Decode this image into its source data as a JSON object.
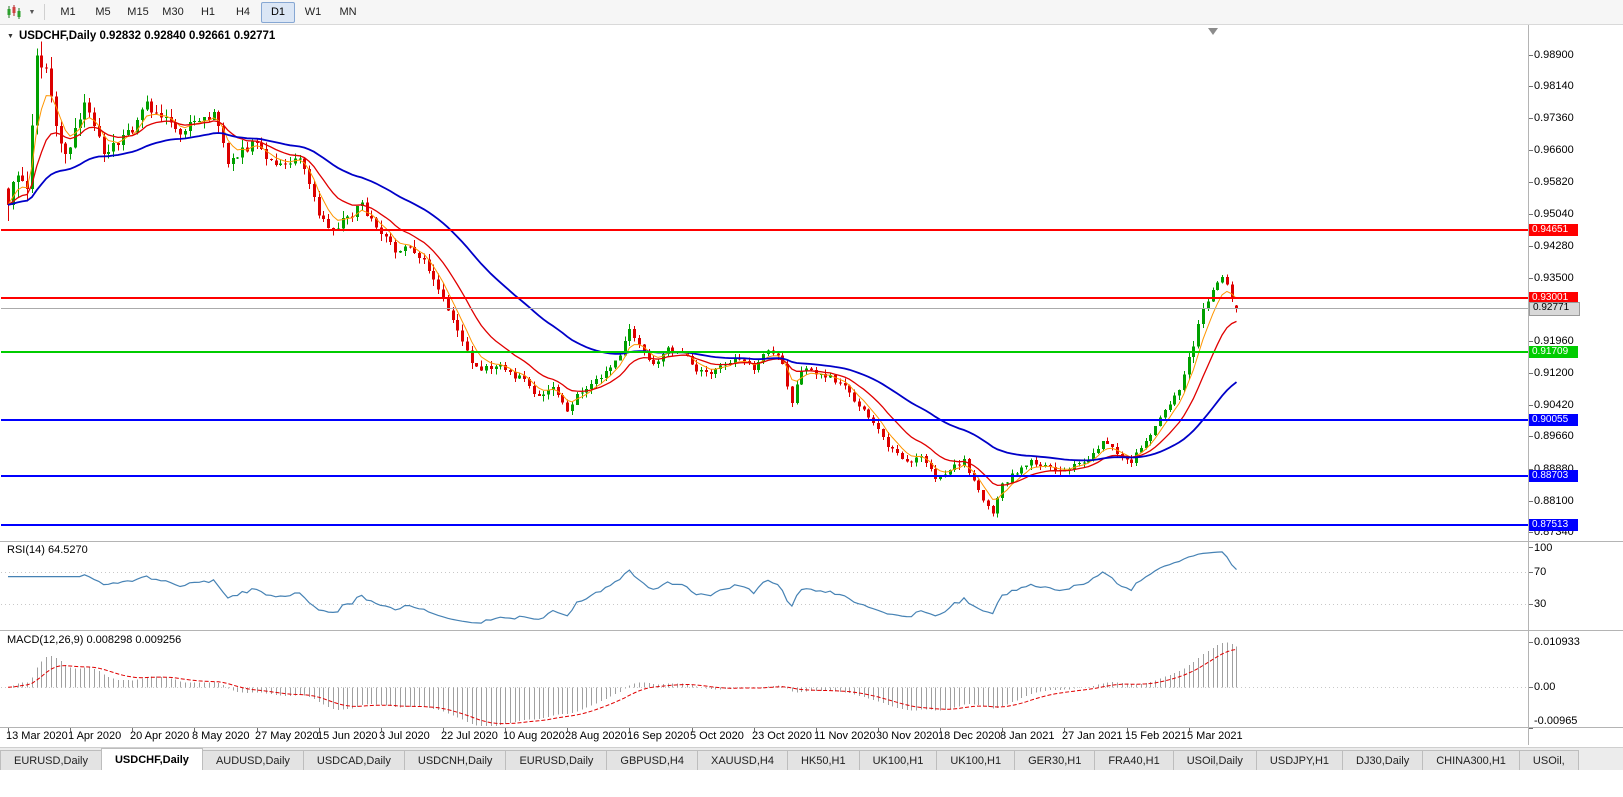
{
  "toolbar": {
    "timeframes": [
      "M1",
      "M5",
      "M15",
      "M30",
      "H1",
      "H4",
      "D1",
      "W1",
      "MN"
    ],
    "active_timeframe": "D1"
  },
  "chart": {
    "title": "USDCHF,Daily 0.92832 0.92840 0.92661 0.92771",
    "symbol": "USDCHF",
    "period": "Daily",
    "ohlc": {
      "open": "0.92832",
      "high": "0.92840",
      "low": "0.92661",
      "close": "0.92771"
    },
    "bid": {
      "label": "0.92771",
      "value": 0.92771
    }
  },
  "price_axis": {
    "ticks": [
      "0.98900",
      "0.98140",
      "0.97360",
      "0.96600",
      "0.95820",
      "0.95040",
      "0.94280",
      "0.93500",
      "0.91960",
      "0.91200",
      "0.90420",
      "0.89660",
      "0.88880",
      "0.88100",
      "0.87340"
    ]
  },
  "date_axis": {
    "labels": [
      "13 Mar 2020",
      "1 Apr 2020",
      "20 Apr 2020",
      "8 May 2020",
      "27 May 2020",
      "15 Jun 2020",
      "3 Jul 2020",
      "22 Jul 2020",
      "10 Aug 2020",
      "28 Aug 2020",
      "16 Sep 2020",
      "5 Oct 2020",
      "23 Oct 2020",
      "11 Nov 2020",
      "30 Nov 2020",
      "18 Dec 2020",
      "8 Jan 2021",
      "27 Jan 2021",
      "15 Feb 2021",
      "5 Mar 2021"
    ]
  },
  "rsi": {
    "label": "RSI(14) 64.5270",
    "period": 14,
    "value": "64.5270",
    "axis_labels": [
      {
        "text": "100",
        "value": 100
      },
      {
        "text": "70",
        "value": 70
      },
      {
        "text": "30",
        "value": 30
      }
    ],
    "guide_levels": [
      70,
      30
    ]
  },
  "macd": {
    "label": "MACD(12,26,9) 0.008298 0.009256",
    "values": [
      "0.008298",
      "0.009256"
    ],
    "axis_labels": [
      {
        "text": "0.010933",
        "value": 0.010933
      },
      {
        "text": "0.00",
        "value": 0
      },
      {
        "text": "-0.00965",
        "value": -0.00965
      }
    ]
  },
  "tabs": {
    "active_index": 1,
    "items": [
      "EURUSD,Daily",
      "USDCHF,Daily",
      "AUDUSD,Daily",
      "USDCAD,Daily",
      "USDCNH,Daily",
      "EURUSD,Daily",
      "GBPUSD,H4",
      "XAUUSD,H4",
      "HK50,H1",
      "UK100,H1",
      "UK100,H1",
      "GER30,H1",
      "FRA40,H1",
      "USOil,Daily",
      "USDJPY,H1",
      "DJ30,Daily",
      "CHINA300,H1",
      "USOil,"
    ]
  },
  "colors": {
    "bull": "#00A000",
    "bear": "#DC0000",
    "ma_fast": "#FF9500",
    "ma_mid": "#E00000",
    "ma_slow": "#0000C8",
    "rsi_line": "#4682B4",
    "macd_hist": "#A0A0A0",
    "macd_signal": "#E00000",
    "bid_line": "#ABABAB",
    "grid": "#C8C8C8"
  },
  "chart_data": {
    "type": "candlestick",
    "symbol": "USDCHF",
    "timeframe": "Daily",
    "x_range": [
      "13 Mar 2020",
      "12 Mar 2021"
    ],
    "y_range": [
      0.8715,
      0.996
    ],
    "count": 258,
    "label_every": 13,
    "close_keyframes": [
      [
        0,
        0.9505
      ],
      [
        2,
        0.962
      ],
      [
        4,
        0.956
      ],
      [
        6,
        0.9875
      ],
      [
        8,
        0.9855
      ],
      [
        10,
        0.97
      ],
      [
        12,
        0.9645
      ],
      [
        14,
        0.97
      ],
      [
        16,
        0.976
      ],
      [
        18,
        0.9725
      ],
      [
        20,
        0.965
      ],
      [
        23,
        0.9685
      ],
      [
        26,
        0.97
      ],
      [
        29,
        0.977
      ],
      [
        33,
        0.9735
      ],
      [
        36,
        0.97
      ],
      [
        39,
        0.9725
      ],
      [
        43,
        0.9745
      ],
      [
        46,
        0.9635
      ],
      [
        49,
        0.966
      ],
      [
        52,
        0.9675
      ],
      [
        55,
        0.9625
      ],
      [
        58,
        0.9615
      ],
      [
        61,
        0.9645
      ],
      [
        65,
        0.951
      ],
      [
        68,
        0.9465
      ],
      [
        71,
        0.95
      ],
      [
        74,
        0.9525
      ],
      [
        78,
        0.9455
      ],
      [
        81,
        0.9415
      ],
      [
        84,
        0.9435
      ],
      [
        87,
        0.939
      ],
      [
        90,
        0.933
      ],
      [
        93,
        0.925
      ],
      [
        96,
        0.9165
      ],
      [
        99,
        0.912
      ],
      [
        102,
        0.914
      ],
      [
        105,
        0.912
      ],
      [
        108,
        0.9105
      ],
      [
        111,
        0.906
      ],
      [
        114,
        0.9085
      ],
      [
        117,
        0.9035
      ],
      [
        119,
        0.9065
      ],
      [
        122,
        0.909
      ],
      [
        125,
        0.912
      ],
      [
        128,
        0.9165
      ],
      [
        130,
        0.923
      ],
      [
        132,
        0.9185
      ],
      [
        135,
        0.914
      ],
      [
        138,
        0.918
      ],
      [
        141,
        0.9165
      ],
      [
        144,
        0.913
      ],
      [
        147,
        0.912
      ],
      [
        150,
        0.9135
      ],
      [
        153,
        0.9155
      ],
      [
        156,
        0.913
      ],
      [
        159,
        0.918
      ],
      [
        162,
        0.9145
      ],
      [
        164,
        0.904
      ],
      [
        166,
        0.913
      ],
      [
        169,
        0.912
      ],
      [
        172,
        0.911
      ],
      [
        175,
        0.9085
      ],
      [
        178,
        0.904
      ],
      [
        182,
        0.898
      ],
      [
        185,
        0.893
      ],
      [
        188,
        0.89
      ],
      [
        191,
        0.8925
      ],
      [
        194,
        0.886
      ],
      [
        197,
        0.8885
      ],
      [
        200,
        0.891
      ],
      [
        203,
        0.883
      ],
      [
        206,
        0.878
      ],
      [
        208,
        0.885
      ],
      [
        211,
        0.888
      ],
      [
        214,
        0.8905
      ],
      [
        217,
        0.889
      ],
      [
        220,
        0.888
      ],
      [
        223,
        0.8895
      ],
      [
        226,
        0.8905
      ],
      [
        229,
        0.896
      ],
      [
        232,
        0.8925
      ],
      [
        235,
        0.89
      ],
      [
        238,
        0.896
      ],
      [
        241,
        0.9005
      ],
      [
        244,
        0.906
      ],
      [
        246,
        0.911
      ],
      [
        248,
        0.919
      ],
      [
        250,
        0.927
      ],
      [
        252,
        0.932
      ],
      [
        254,
        0.936
      ],
      [
        255,
        0.934
      ],
      [
        256,
        0.9295
      ],
      [
        257,
        0.92771
      ]
    ],
    "volatility_keyframes": [
      [
        0,
        0.005
      ],
      [
        8,
        0.0042
      ],
      [
        16,
        0.003
      ],
      [
        40,
        0.0024
      ],
      [
        70,
        0.0022
      ],
      [
        95,
        0.002
      ],
      [
        120,
        0.0016
      ],
      [
        160,
        0.0015
      ],
      [
        200,
        0.0014
      ],
      [
        235,
        0.0014
      ],
      [
        250,
        0.002
      ],
      [
        257,
        0.0012
      ]
    ],
    "last_candle": {
      "open": 0.92832,
      "high": 0.9284,
      "low": 0.92661,
      "close": 0.92771
    },
    "overlays": {
      "ma_fast_period": 5,
      "ma_mid_period": 13,
      "ma_slow_period": 40
    },
    "indicators": {
      "rsi": {
        "period": 14,
        "last": 64.527,
        "levels": [
          70,
          30
        ]
      },
      "macd": {
        "fast": 12,
        "slow": 26,
        "signal": 9,
        "last_main": 0.008298,
        "last_signal": 0.009256
      }
    },
    "levels": [
      {
        "price": "0.94651",
        "value": 0.94651,
        "color": "#FF0000"
      },
      {
        "price": "0.93001",
        "value": 0.93001,
        "color": "#FF0000"
      },
      {
        "price": "0.91709",
        "value": 0.91709,
        "color": "#00CC00"
      },
      {
        "price": "0.90055",
        "value": 0.90055,
        "color": "#0000FF"
      },
      {
        "price": "0.88703",
        "value": 0.88703,
        "color": "#0000FF"
      },
      {
        "price": "0.87513",
        "value": 0.87513,
        "color": "#0000FF"
      }
    ]
  }
}
